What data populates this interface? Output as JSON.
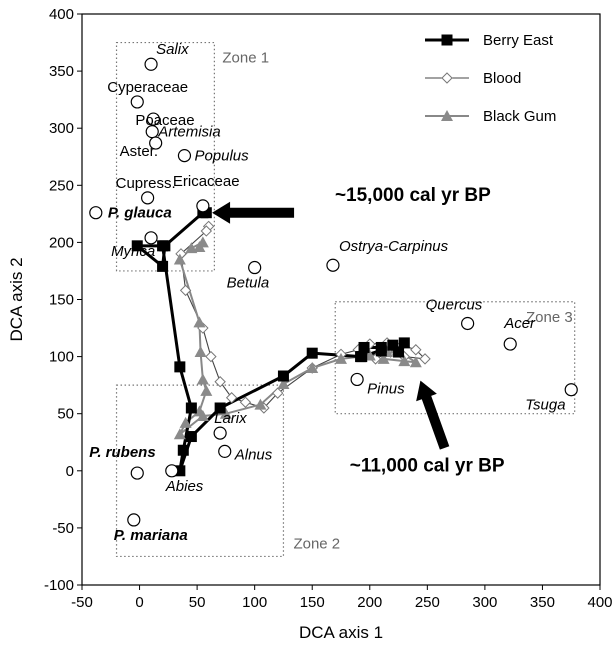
{
  "chart_data": {
    "type": "scatter",
    "xlabel": "DCA axis 1",
    "ylabel": "DCA axis 2",
    "xlim": [
      -50,
      400
    ],
    "ylim": [
      -100,
      400
    ],
    "xticks": [
      "-50",
      "0",
      "50",
      "100",
      "150",
      "200",
      "250",
      "300",
      "350",
      "400"
    ],
    "yticks": [
      "-100",
      "-50",
      "0",
      "50",
      "100",
      "150",
      "200",
      "250",
      "300",
      "350",
      "400"
    ],
    "grid": false,
    "legend_position": "top-right",
    "taxa": [
      {
        "label": "Salix",
        "x": 10,
        "y": 356,
        "italic": true,
        "bold": false
      },
      {
        "label": "Cyperaceae",
        "x": -2,
        "y": 323,
        "italic": false,
        "bold": false
      },
      {
        "label": "Poaceae",
        "x": 12,
        "y": 308,
        "italic": false,
        "bold": false
      },
      {
        "label": "Artemisia",
        "x": 11,
        "y": 297,
        "italic": true,
        "bold": false
      },
      {
        "label": "Aster.",
        "x": 14,
        "y": 287,
        "italic": false,
        "bold": false
      },
      {
        "label": "Populus",
        "x": 39,
        "y": 276,
        "italic": true,
        "bold": false
      },
      {
        "label": "Cupress.",
        "x": 7,
        "y": 239,
        "italic": false,
        "bold": false
      },
      {
        "label": "Ericaceae",
        "x": 55,
        "y": 232,
        "italic": false,
        "bold": false
      },
      {
        "label": "P. glauca",
        "x": -38,
        "y": 226,
        "italic": true,
        "bold": true
      },
      {
        "label": "Myrica",
        "x": 10,
        "y": 204,
        "italic": true,
        "bold": false
      },
      {
        "label": "Betula",
        "x": 100,
        "y": 178,
        "italic": true,
        "bold": false
      },
      {
        "label": "Ostrya-Carpinus",
        "x": 168,
        "y": 180,
        "italic": true,
        "bold": false
      },
      {
        "label": "Quercus",
        "x": 285,
        "y": 129,
        "italic": true,
        "bold": false
      },
      {
        "label": "Acer",
        "x": 322,
        "y": 111,
        "italic": true,
        "bold": false
      },
      {
        "label": "Tsuga",
        "x": 375,
        "y": 71,
        "italic": true,
        "bold": false
      },
      {
        "label": "Pinus",
        "x": 189,
        "y": 80,
        "italic": true,
        "bold": false
      },
      {
        "label": "Larix",
        "x": 70,
        "y": 33,
        "italic": true,
        "bold": false
      },
      {
        "label": "Alnus",
        "x": 74,
        "y": 17,
        "italic": true,
        "bold": false
      },
      {
        "label": "P. rubens",
        "x": -2,
        "y": -2,
        "italic": true,
        "bold": true
      },
      {
        "label": "Abies",
        "x": 28,
        "y": 0,
        "italic": true,
        "bold": false
      },
      {
        "label": "P. mariana",
        "x": -5,
        "y": -43,
        "italic": true,
        "bold": true
      }
    ],
    "series": [
      {
        "name": "Berry East",
        "marker": "square",
        "color": "#000000",
        "x": [
          58,
          55,
          22,
          20,
          -2,
          20,
          35,
          45,
          38,
          35,
          45,
          70,
          125,
          150,
          192,
          195,
          210,
          225,
          230,
          193,
          210,
          220
        ],
        "y": [
          226,
          226,
          197,
          179,
          197,
          197,
          91,
          55,
          18,
          0,
          30,
          55,
          83,
          103,
          100,
          108,
          108,
          104,
          112,
          100,
          105,
          110
        ]
      },
      {
        "name": "Blood",
        "marker": "diamond-open",
        "color": "#555555",
        "x": [
          60,
          58,
          36,
          40,
          55,
          62,
          70,
          80,
          92,
          108,
          120,
          150,
          175,
          190,
          200,
          215,
          228,
          240,
          248,
          230,
          218,
          205
        ],
        "y": [
          214,
          210,
          190,
          158,
          125,
          100,
          78,
          64,
          60,
          55,
          68,
          90,
          102,
          106,
          111,
          112,
          110,
          106,
          98,
          100,
          104,
          98
        ]
      },
      {
        "name": "Black Gum",
        "marker": "triangle",
        "color": "#777777",
        "x": [
          52,
          55,
          45,
          35,
          52,
          53,
          55,
          58,
          52,
          40,
          35,
          55,
          75,
          105,
          125,
          150,
          175,
          200,
          215,
          222,
          240,
          230,
          212
        ],
        "y": [
          196,
          200,
          195,
          185,
          130,
          104,
          80,
          70,
          52,
          42,
          32,
          48,
          50,
          58,
          76,
          90,
          98,
          101,
          104,
          107,
          95,
          96,
          98
        ]
      }
    ],
    "zones": [
      {
        "label": "Zone 1",
        "x": [
          -20,
          65
        ],
        "y": [
          175,
          375
        ]
      },
      {
        "label": "Zone 2",
        "x": [
          -20,
          125
        ],
        "y": [
          -75,
          75
        ]
      },
      {
        "label": "Zone 3",
        "x": [
          170,
          378
        ],
        "y": [
          50,
          148
        ]
      }
    ],
    "annotations": [
      {
        "label": "~15,000 cal yr BP",
        "x": 135,
        "y": 238
      },
      {
        "label": "~11,000 cal yr BP",
        "x": 180,
        "y": 2
      }
    ]
  }
}
